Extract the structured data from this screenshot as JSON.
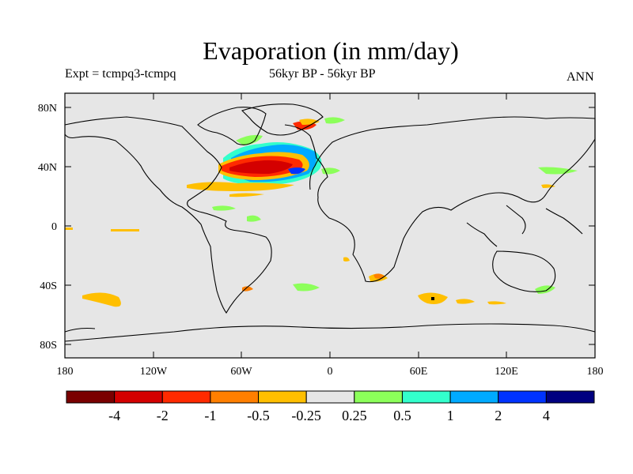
{
  "title": "Evaporation (in mm/day)",
  "left_label": "Expt = tcmpq3-tcmpq",
  "center_label": "56kyr BP - 56kyr BP",
  "right_label": "ANN",
  "lat_ticks": [
    "80N",
    "40N",
    "0",
    "40S",
    "80S"
  ],
  "lon_ticks": [
    "180",
    "120W",
    "60W",
    "0",
    "60E",
    "120E",
    "180"
  ],
  "colorbar": {
    "labels": [
      "-4",
      "-2",
      "-1",
      "-0.5",
      "-0.25",
      "0.25",
      "0.5",
      "1",
      "2",
      "4"
    ],
    "colors": [
      "#7a0000",
      "#d40000",
      "#ff2a00",
      "#ff7f00",
      "#ffbf00",
      "#e6e6e6",
      "#8cff5a",
      "#33ffcc",
      "#00aaff",
      "#0033ff",
      "#000080"
    ]
  },
  "colors": {
    "ocean_bg": "#e6e6e6",
    "coast": "#000000"
  }
}
